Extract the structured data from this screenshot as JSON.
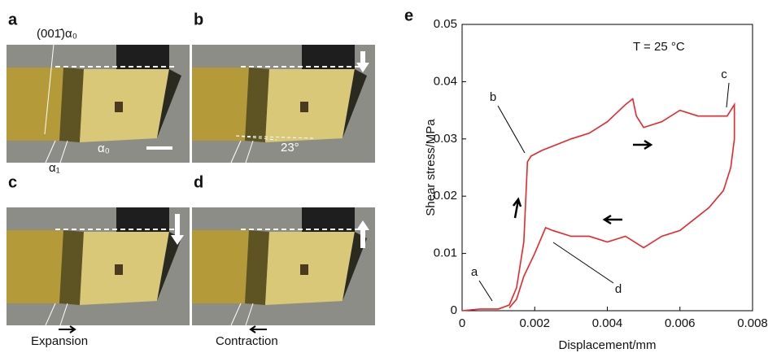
{
  "panels": {
    "labels": [
      "a",
      "b",
      "c",
      "d"
    ],
    "plane_label": "(001̄)α₀",
    "alpha0": "α₀",
    "alpha1": "α₁",
    "angle": "23°",
    "expansion": "Expansion",
    "contraction": "Contraction"
  },
  "chart_data": {
    "type": "line",
    "panel_label": "e",
    "annotation": "T = 25 °C",
    "point_labels": [
      "a",
      "b",
      "c",
      "d"
    ],
    "x_label": "Displacement/mm",
    "y_label": "Shear stress/MPa",
    "xlim": [
      0,
      0.008
    ],
    "xticks": [
      0,
      0.002,
      0.004,
      0.006,
      0.008
    ],
    "ylim": [
      0,
      0.05
    ],
    "yticks": [
      0,
      0.01,
      0.02,
      0.03,
      0.04,
      0.05
    ],
    "x": [
      0,
      0.0005,
      0.001,
      0.0013,
      0.0015,
      0.0017,
      0.0018,
      0.0019,
      0.0022,
      0.0026,
      0.003,
      0.0035,
      0.004,
      0.0045,
      0.0047,
      0.0048,
      0.005,
      0.0055,
      0.006,
      0.0065,
      0.007,
      0.0073,
      0.0075,
      0.0075,
      0.0074,
      0.0072,
      0.0068,
      0.006,
      0.0055,
      0.005,
      0.0045,
      0.004,
      0.0035,
      0.003,
      0.0025,
      0.0023,
      0.002,
      0.0017,
      0.0015,
      0.0013
    ],
    "series": [
      {
        "color": "#e8262a",
        "values": [
          0,
          0.0003,
          0.0003,
          0.001,
          0.004,
          0.012,
          0.026,
          0.027,
          0.028,
          0.029,
          0.03,
          0.031,
          0.033,
          0.036,
          0.037,
          0.034,
          0.032,
          0.033,
          0.035,
          0.034,
          0.034,
          0.034,
          0.036,
          0.03,
          0.025,
          0.021,
          0.018,
          0.014,
          0.013,
          0.011,
          0.013,
          0.012,
          0.013,
          0.013,
          0.014,
          0.0145,
          0.01,
          0.006,
          0.002,
          0.0005
        ]
      }
    ]
  }
}
